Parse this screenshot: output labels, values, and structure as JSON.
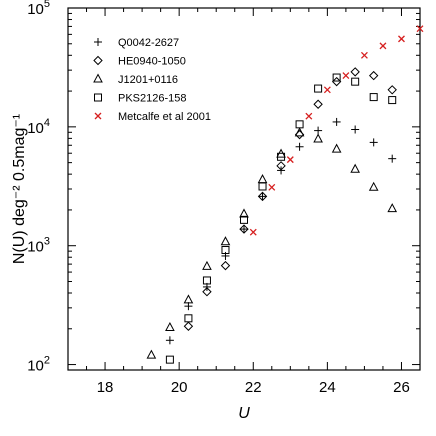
{
  "chart_data": {
    "type": "scatter",
    "title": "",
    "xlabel": "U",
    "ylabel": "N(U) deg⁻² 0.5mag⁻¹",
    "xlim": [
      17,
      26.5
    ],
    "ylim": [
      90,
      100000
    ],
    "yscale": "log",
    "grid": false,
    "legend_position": "top-left",
    "x_ticks": [
      "18",
      "20",
      "22",
      "24",
      "26"
    ],
    "y_ticks": [
      {
        "base": "10",
        "exp": "2"
      },
      {
        "base": "10",
        "exp": "3"
      },
      {
        "base": "10",
        "exp": "4"
      },
      {
        "base": "10",
        "exp": "5"
      }
    ],
    "series": [
      {
        "name": "Q0042-2627",
        "marker": "plus",
        "color": "#000000",
        "points": [
          [
            19.75,
            160
          ],
          [
            20.25,
            310
          ],
          [
            20.75,
            450
          ],
          [
            21.25,
            820
          ],
          [
            21.75,
            1380
          ],
          [
            22.25,
            2600
          ],
          [
            22.75,
            4300
          ],
          [
            23.25,
            6800
          ],
          [
            23.75,
            9300
          ],
          [
            24.25,
            11000
          ],
          [
            24.75,
            9500
          ],
          [
            25.25,
            7400
          ],
          [
            25.75,
            5400
          ]
        ]
      },
      {
        "name": "HE0940-1050",
        "marker": "diamond",
        "color": "#000000",
        "points": [
          [
            20.25,
            210
          ],
          [
            20.75,
            410
          ],
          [
            21.25,
            680
          ],
          [
            21.75,
            1380
          ],
          [
            22.25,
            2600
          ],
          [
            22.75,
            4700
          ],
          [
            23.25,
            8600
          ],
          [
            23.75,
            15500
          ],
          [
            24.25,
            24000
          ],
          [
            24.75,
            29000
          ],
          [
            25.25,
            27000
          ],
          [
            25.75,
            20500
          ]
        ]
      },
      {
        "name": "J1201+0116",
        "marker": "triangle",
        "color": "#000000",
        "points": [
          [
            19.25,
            120
          ],
          [
            19.75,
            205
          ],
          [
            20.25,
            350
          ],
          [
            20.75,
            670
          ],
          [
            21.25,
            1080
          ],
          [
            21.75,
            1850
          ],
          [
            22.25,
            3600
          ],
          [
            22.75,
            5900
          ],
          [
            23.25,
            8900
          ],
          [
            23.75,
            7900
          ],
          [
            24.25,
            6500
          ],
          [
            24.75,
            4400
          ],
          [
            25.25,
            3100
          ],
          [
            25.75,
            2050
          ]
        ]
      },
      {
        "name": "PKS2126-158",
        "marker": "square",
        "color": "#000000",
        "points": [
          [
            19.75,
            110
          ],
          [
            20.25,
            245
          ],
          [
            20.75,
            510
          ],
          [
            21.25,
            920
          ],
          [
            21.75,
            1650
          ],
          [
            22.25,
            3150
          ],
          [
            22.75,
            5600
          ],
          [
            23.25,
            10500
          ],
          [
            23.75,
            21000
          ],
          [
            24.25,
            26000
          ],
          [
            24.75,
            24000
          ],
          [
            25.25,
            17800
          ],
          [
            25.75,
            16800
          ]
        ]
      },
      {
        "name": "Metcalfe et al 2001",
        "marker": "cross",
        "color": "#d62020",
        "points": [
          [
            22.0,
            1300
          ],
          [
            22.5,
            3100
          ],
          [
            23.0,
            5300
          ],
          [
            23.5,
            12300
          ],
          [
            24.0,
            20500
          ],
          [
            24.5,
            27000
          ],
          [
            25.0,
            40000
          ],
          [
            25.5,
            48000
          ],
          [
            26.0,
            55000
          ],
          [
            26.5,
            67000
          ]
        ]
      }
    ]
  }
}
